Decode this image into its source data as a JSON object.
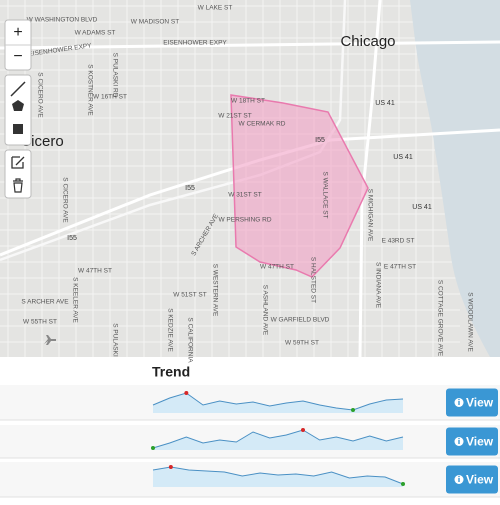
{
  "map": {
    "zoom_in": "+",
    "zoom_out": "−",
    "cities": [
      "Chicago",
      "Cicero"
    ],
    "labels": [
      "W LAKE ST",
      "W WASHINGTON BLVD",
      "W MADISON ST",
      "W ADAMS ST",
      "EISENHOWER EXPY",
      "EISENHOWER EXPY",
      "W 16TH ST",
      "W 18TH ST",
      "W 21ST ST",
      "W CERMAK RD",
      "US 41",
      "US 41",
      "US 41",
      "I55",
      "I55",
      "I55",
      "W 31ST ST",
      "W PERSHING RD",
      "S WALLACE ST",
      "S HALSTED ST",
      "E 43RD ST",
      "E 47TH ST",
      "W 47TH ST",
      "W 47TH ST",
      "S ARCHER AVE",
      "S ARCHER AVE",
      "W 55TH ST",
      "W 51ST ST",
      "W GARFIELD BLVD",
      "W 59TH ST",
      "S MICHIGAN AVE",
      "S INDIANA AVE",
      "S COTTAGE GROVE AVE",
      "S WOODLAWN AVE",
      "S PULASKI RD",
      "S KOSTNER AVE",
      "S CICERO AVE",
      "S CICERO AVE",
      "S KEELER AVE",
      "S KEDZIE AVE",
      "S CALIFORNIA",
      "S WESTERN AVE",
      "S ASHLAND AVE",
      "S PULASKI"
    ]
  },
  "trend": {
    "title": "Trend",
    "rows": [
      {
        "values": [
          8,
          15,
          20,
          8,
          12,
          9,
          11,
          7,
          10,
          12,
          8,
          5,
          3,
          9,
          13,
          14
        ],
        "button": "View"
      },
      {
        "values": [
          2,
          7,
          13,
          7,
          10,
          8,
          18,
          12,
          15,
          20,
          10,
          13,
          9,
          14,
          9,
          13
        ],
        "button": "View"
      },
      {
        "values": [
          16,
          19,
          16,
          15,
          14,
          10,
          13,
          11,
          12,
          10,
          14,
          8,
          10,
          9,
          2
        ],
        "button": "View"
      }
    ]
  }
}
